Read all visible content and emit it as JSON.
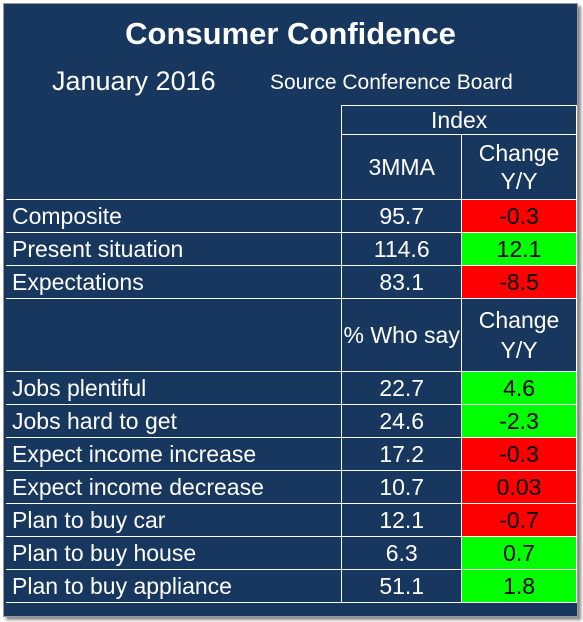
{
  "title": "Consumer Confidence",
  "subtitle": "January 2016",
  "source": "Source Conference Board",
  "index_header": "Index",
  "header1": {
    "col1": "3MMA",
    "col2": "Change Y/Y"
  },
  "group1": [
    {
      "label": "Composite",
      "value": "95.7",
      "change": "-0.3",
      "status": "neg"
    },
    {
      "label": "Present situation",
      "value": "114.6",
      "change": "12.1",
      "status": "pos"
    },
    {
      "label": "Expectations",
      "value": "83.1",
      "change": "-8.5",
      "status": "neg"
    }
  ],
  "header2": {
    "col1": "% Who say",
    "col2": "Change Y/Y"
  },
  "group2": [
    {
      "label": "Jobs plentiful",
      "value": "22.7",
      "change": "4.6",
      "status": "pos"
    },
    {
      "label": "Jobs hard to get",
      "value": "24.6",
      "change": "-2.3",
      "status": "pos"
    },
    {
      "label": "Expect income increase",
      "value": "17.2",
      "change": "-0.3",
      "status": "neg"
    },
    {
      "label": "Expect income decrease",
      "value": "10.7",
      "change": "0.03",
      "status": "neg"
    },
    {
      "label": "Plan to buy car",
      "value": "12.1",
      "change": "-0.7",
      "status": "neg"
    },
    {
      "label": "Plan to buy house",
      "value": "6.3",
      "change": "0.7",
      "status": "pos"
    },
    {
      "label": "Plan to buy appliance",
      "value": "51.1",
      "change": "1.8",
      "status": "pos"
    }
  ],
  "colors": {
    "background": "#17375e",
    "negative": "#ff0000",
    "positive": "#00ff00"
  }
}
